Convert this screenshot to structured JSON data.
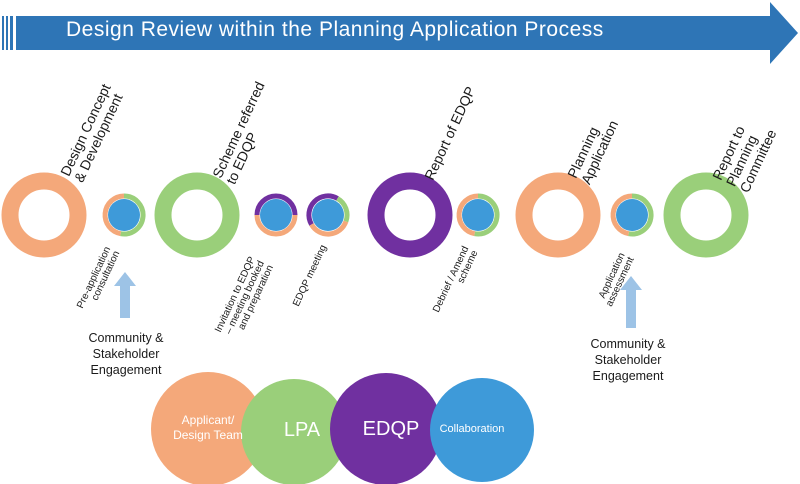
{
  "title": "Design Review within the Planning Application Process",
  "colors": {
    "banner": "#2E75B6",
    "orange": "#F4A87A",
    "green": "#9ACF7A",
    "purple": "#7030A0",
    "blue": "#3E9AD9",
    "arrow_light": "#9DC3E6"
  },
  "stages": [
    {
      "lines": [
        "Design Concept",
        "& Development"
      ],
      "ring": "orange"
    },
    {
      "lines": [
        "Scheme referred",
        "to EDQP"
      ],
      "ring": "green"
    },
    {
      "lines": [
        "Report of EDQP"
      ],
      "ring": "purple"
    },
    {
      "lines": [
        "Planning",
        "Application"
      ],
      "ring": "orange"
    },
    {
      "lines": [
        "Report to",
        "Planning",
        "Committee"
      ],
      "ring": "green"
    }
  ],
  "sub_steps": [
    {
      "lines": [
        "Pre-application",
        "consultation"
      ]
    },
    {
      "lines": [
        "Invitation to EDQP",
        "– meeting booked",
        "and preparation"
      ]
    },
    {
      "lines": [
        "EDQP meeting"
      ]
    },
    {
      "lines": [
        "Debrief / Amend",
        "scheme"
      ]
    },
    {
      "lines": [
        "Application",
        "assessment"
      ]
    }
  ],
  "engagement": [
    {
      "lines": [
        "Community &",
        "Stakeholder",
        "Engagement"
      ]
    },
    {
      "lines": [
        "Community &",
        "Stakeholder",
        "Engagement"
      ]
    }
  ],
  "legend": [
    {
      "lines": [
        "Applicant/",
        "Design Team"
      ],
      "color": "orange"
    },
    {
      "lines": [
        "LPA"
      ],
      "color": "green"
    },
    {
      "lines": [
        "EDQP"
      ],
      "color": "purple"
    },
    {
      "lines": [
        "Collaboration"
      ],
      "color": "blue"
    }
  ]
}
